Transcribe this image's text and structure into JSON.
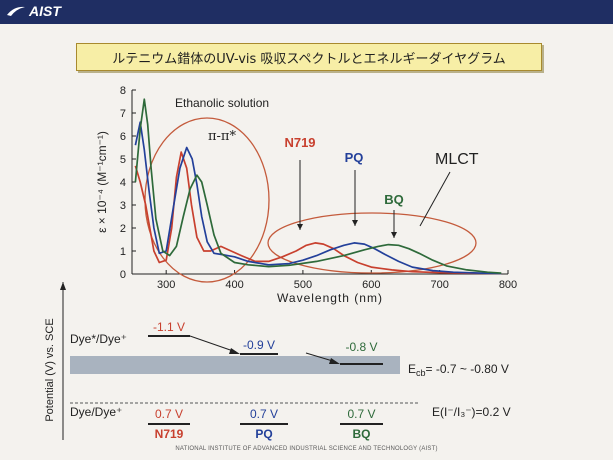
{
  "header": {
    "brand": "AIST"
  },
  "slide_title": "ルテニウム錯体のUV-vis 吸収スペクトルとエネルギーダイヤグラム",
  "footer_text": "NATIONAL INSTITUTE OF ADVANCED INDUSTRIAL SCIENCE AND TECHNOLOGY (AIST)",
  "colors": {
    "n719": "#c8402e",
    "pq": "#23409a",
    "bq": "#2e6a3a",
    "ellipse": "#c45b3c",
    "band": "#a9b3bf"
  },
  "chart_data": [
    {
      "type": "line",
      "xlabel": "Wavelength (nm)",
      "ylabel": "ε × 10⁻⁴ (M⁻¹cm⁻¹)",
      "xlim": [
        250,
        800
      ],
      "ylim": [
        0,
        8
      ],
      "xticks": [
        "300",
        "400",
        "500",
        "600",
        "700",
        "800"
      ],
      "yticks": [
        "0",
        "1",
        "2",
        "3",
        "4",
        "5",
        "6",
        "7",
        "8"
      ],
      "annotations": {
        "solvent": "Ethanolic solution",
        "pi": "π-π*",
        "mlct": "MLCT"
      },
      "series": [
        {
          "name": "N719",
          "x": [
            255,
            262,
            270,
            276,
            282,
            290,
            300,
            308,
            315,
            322,
            330,
            337,
            345,
            355,
            365,
            380,
            395,
            410,
            430,
            450,
            470,
            490,
            505,
            518,
            530,
            545,
            560,
            580,
            600,
            630,
            660,
            700,
            740,
            790
          ],
          "y": [
            4.7,
            4.0,
            3.0,
            2.0,
            1.0,
            0.5,
            0.6,
            2.0,
            4.2,
            5.3,
            4.6,
            3.0,
            1.6,
            1.0,
            1.0,
            1.2,
            1.0,
            0.8,
            0.55,
            0.55,
            0.75,
            1.0,
            1.25,
            1.35,
            1.3,
            1.1,
            0.8,
            0.5,
            0.3,
            0.18,
            0.1,
            0.06,
            0.04,
            0.02
          ]
        },
        {
          "name": "PQ",
          "x": [
            255,
            262,
            268,
            275,
            282,
            290,
            300,
            310,
            320,
            330,
            338,
            345,
            352,
            360,
            370,
            380,
            400,
            420,
            450,
            480,
            500,
            520,
            540,
            560,
            575,
            590,
            605,
            620,
            640,
            660,
            690,
            720,
            760,
            790
          ],
          "y": [
            5.6,
            6.6,
            5.4,
            3.6,
            2.0,
            0.9,
            1.0,
            2.8,
            4.6,
            5.5,
            5.0,
            3.9,
            2.5,
            1.4,
            0.9,
            0.85,
            0.75,
            0.55,
            0.4,
            0.45,
            0.6,
            0.8,
            1.05,
            1.25,
            1.35,
            1.3,
            1.1,
            0.85,
            0.55,
            0.3,
            0.15,
            0.08,
            0.04,
            0.02
          ]
        },
        {
          "name": "BQ",
          "x": [
            255,
            262,
            268,
            273,
            278,
            285,
            295,
            305,
            315,
            325,
            335,
            345,
            352,
            360,
            370,
            380,
            400,
            420,
            450,
            480,
            520,
            560,
            590,
            610,
            625,
            640,
            655,
            670,
            690,
            710,
            740,
            770,
            790
          ],
          "y": [
            4.0,
            6.3,
            7.6,
            6.5,
            4.6,
            2.4,
            1.0,
            0.8,
            1.2,
            2.5,
            3.7,
            4.3,
            4.0,
            3.0,
            1.7,
            0.9,
            0.5,
            0.4,
            0.32,
            0.38,
            0.55,
            0.8,
            1.05,
            1.2,
            1.28,
            1.25,
            1.1,
            0.9,
            0.6,
            0.35,
            0.18,
            0.08,
            0.04
          ]
        }
      ],
      "peak_labels": [
        "N719",
        "PQ",
        "BQ"
      ]
    },
    {
      "type": "diagram",
      "ylabel": "Potential (V) vs. SCE",
      "levels_label_top": "Dye*/Dye⁺",
      "levels_label_bottom": "Dye/Dye⁺",
      "excited_levels": [
        {
          "dye": "N719",
          "value": -1.1,
          "label": "-1.1 V"
        },
        {
          "dye": "PQ",
          "value": -0.9,
          "label": "-0.9 V"
        },
        {
          "dye": "BQ",
          "value": -0.8,
          "label": "-0.8 V"
        }
      ],
      "ground_levels": [
        {
          "dye": "N719",
          "value": 0.7,
          "label": "0.7 V"
        },
        {
          "dye": "PQ",
          "value": 0.7,
          "label": "0.7 V"
        },
        {
          "dye": "BQ",
          "value": 0.7,
          "label": "0.7 V"
        }
      ],
      "ecb_label": "E",
      "ecb_sub": "cb",
      "ecb_range": "= -0.7 ~ -0.80 V",
      "redox_label": "E(I⁻/I₃⁻)=0.2 V",
      "dye_names": [
        "N719",
        "PQ",
        "BQ"
      ]
    }
  ]
}
